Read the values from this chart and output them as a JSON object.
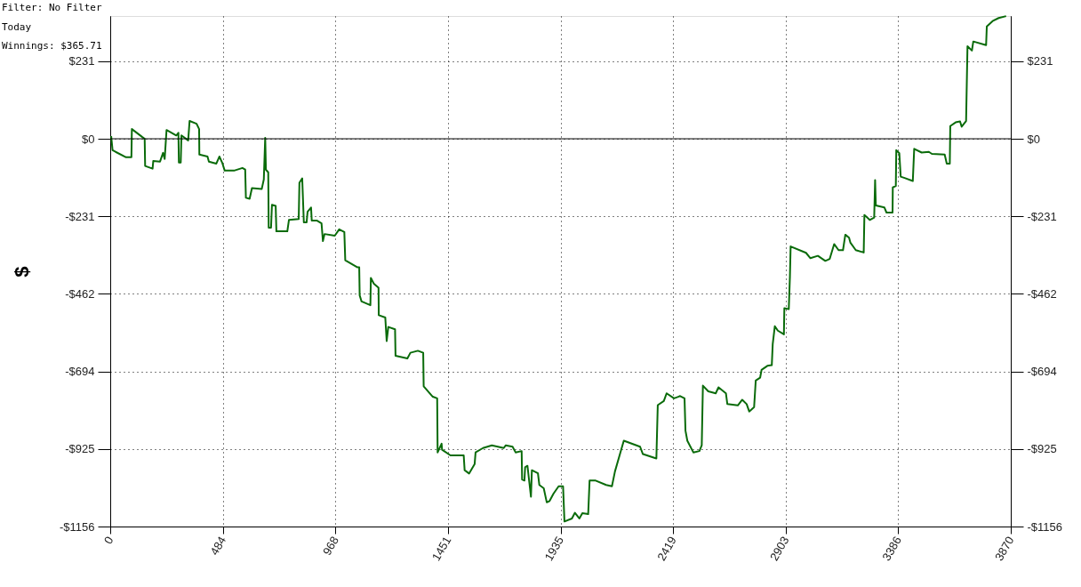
{
  "chart_data": {
    "type": "line",
    "ylabel": "$",
    "annotations": [
      "Filter: No Filter",
      "Today",
      "Winnings: $365.71"
    ],
    "x": [
      4,
      10,
      23,
      68,
      91,
      93,
      138,
      148,
      150,
      182,
      185,
      214,
      227,
      234,
      242,
      284,
      293,
      295,
      303,
      306,
      335,
      341,
      371,
      382,
      383,
      418,
      424,
      456,
      469,
      481,
      492,
      532,
      568,
      580,
      583,
      599,
      609,
      651,
      660,
      666,
      669,
      679,
      681,
      691,
      695,
      711,
      714,
      761,
      768,
      810,
      813,
      825,
      832,
      844,
      848,
      863,
      866,
      889,
      908,
      914,
      921,
      965,
      984,
      1006,
      1010,
      1061,
      1070,
      1072,
      1080,
      1118,
      1120,
      1133,
      1153,
      1154,
      1182,
      1188,
      1195,
      1224,
      1226,
      1277,
      1290,
      1322,
      1345,
      1347,
      1386,
      1405,
      1407,
      1424,
      1426,
      1462,
      1519,
      1523,
      1542,
      1566,
      1570,
      1602,
      1640,
      1691,
      1700,
      1729,
      1742,
      1768,
      1770,
      1780,
      1783,
      1793,
      1808,
      1812,
      1838,
      1844,
      1863,
      1876,
      1888,
      1905,
      1927,
      1946,
      1952,
      1984,
      1997,
      2016,
      2029,
      2054,
      2060,
      2086,
      2131,
      2156,
      2169,
      2207,
      2277,
      2289,
      2347,
      2353,
      2379,
      2391,
      2423,
      2449,
      2468,
      2472,
      2480,
      2506,
      2532,
      2542,
      2547,
      2570,
      2602,
      2614,
      2646,
      2652,
      2697,
      2716,
      2735,
      2746,
      2767,
      2774,
      2793,
      2799,
      2824,
      2843,
      2847,
      2856,
      2869,
      2895,
      2897,
      2916,
      2921,
      2924,
      2990,
      3009,
      3041,
      3073,
      3092,
      3111,
      3130,
      3149,
      3159,
      3175,
      3181,
      3204,
      3238,
      3241,
      3264,
      3283,
      3287,
      3290,
      3327,
      3336,
      3362,
      3363,
      3376,
      3378,
      3391,
      3397,
      3414,
      3449,
      3455,
      3487,
      3518,
      3531,
      3586,
      3595,
      3608,
      3610,
      3633,
      3652,
      3659,
      3678,
      3684,
      3703,
      3709,
      3764,
      3767,
      3792,
      3818,
      3850
    ],
    "series": [
      {
        "color": "#0a6b0a",
        "values": [
          8,
          -34,
          -39,
          -55,
          -55,
          29,
          5,
          0,
          -81,
          -89,
          -66,
          -68,
          -42,
          -60,
          26,
          10,
          18,
          -71,
          -71,
          10,
          -5,
          53,
          45,
          29,
          -47,
          -53,
          -68,
          -74,
          -53,
          -71,
          -95,
          -95,
          -87,
          -92,
          -176,
          -179,
          -147,
          -150,
          -121,
          3,
          -92,
          -100,
          -265,
          -265,
          -197,
          -200,
          -276,
          -276,
          -242,
          -239,
          -131,
          -118,
          -249,
          -249,
          -218,
          -205,
          -244,
          -244,
          -252,
          -305,
          -284,
          -289,
          -270,
          -278,
          -362,
          -383,
          -383,
          -467,
          -485,
          -496,
          -415,
          -432,
          -444,
          -526,
          -533,
          -603,
          -561,
          -568,
          -647,
          -655,
          -638,
          -632,
          -638,
          -738,
          -769,
          -774,
          -935,
          -909,
          -927,
          -944,
          -944,
          -988,
          -998,
          -970,
          -935,
          -922,
          -914,
          -922,
          -914,
          -918,
          -935,
          -931,
          -1016,
          -1019,
          -979,
          -975,
          -1067,
          -988,
          -997,
          -1032,
          -1042,
          -1084,
          -1080,
          -1058,
          -1036,
          -1036,
          -1141,
          -1132,
          -1115,
          -1132,
          -1116,
          -1119,
          -1019,
          -1019,
          -1032,
          -1036,
          -992,
          -900,
          -918,
          -940,
          -953,
          -794,
          -782,
          -759,
          -774,
          -767,
          -774,
          -870,
          -900,
          -935,
          -931,
          -914,
          -736,
          -753,
          -759,
          -741,
          -759,
          -791,
          -795,
          -778,
          -791,
          -813,
          -800,
          -721,
          -712,
          -689,
          -677,
          -675,
          -612,
          -559,
          -572,
          -583,
          -505,
          -508,
          -410,
          -321,
          -340,
          -356,
          -349,
          -364,
          -358,
          -314,
          -332,
          -332,
          -286,
          -295,
          -310,
          -332,
          -339,
          -227,
          -242,
          -235,
          -123,
          -199,
          -205,
          -220,
          -220,
          -145,
          -141,
          -34,
          -43,
          -113,
          -117,
          -126,
          -30,
          -41,
          -39,
          -45,
          -47,
          -74,
          -74,
          38,
          49,
          52,
          36,
          53,
          276,
          263,
          290,
          279,
          335,
          351,
          360,
          365.71
        ]
      }
    ],
    "xlim": [
      0,
      3870
    ],
    "xticks": [
      0,
      484,
      968,
      1451,
      1935,
      2419,
      2903,
      3386,
      3870
    ],
    "ylim": [
      -1156,
      366
    ],
    "yticks": [
      {
        "value": -1156,
        "label": "-$1156"
      },
      {
        "value": -925,
        "label": "-$925"
      },
      {
        "value": -694,
        "label": "-$694"
      },
      {
        "value": -462,
        "label": "-$462"
      },
      {
        "value": -231,
        "label": "-$231"
      },
      {
        "value": 0,
        "label": "$0"
      },
      {
        "value": 231,
        "label": "$231"
      }
    ],
    "y2lim": [
      -1156,
      366
    ],
    "y2ticks": [
      {
        "value": -1156,
        "label": "-$1156"
      },
      {
        "value": -925,
        "label": "-$925"
      },
      {
        "value": -694,
        "label": "-$694"
      },
      {
        "value": -462,
        "label": "-$462"
      },
      {
        "value": -231,
        "label": "-$231"
      },
      {
        "value": 0,
        "label": "$0"
      },
      {
        "value": 231,
        "label": "$231"
      }
    ],
    "ref_lines": [
      {
        "axis": "y",
        "value": 0,
        "color": "#000000"
      }
    ],
    "grid": true,
    "line_style": "solid",
    "marker": "none"
  }
}
